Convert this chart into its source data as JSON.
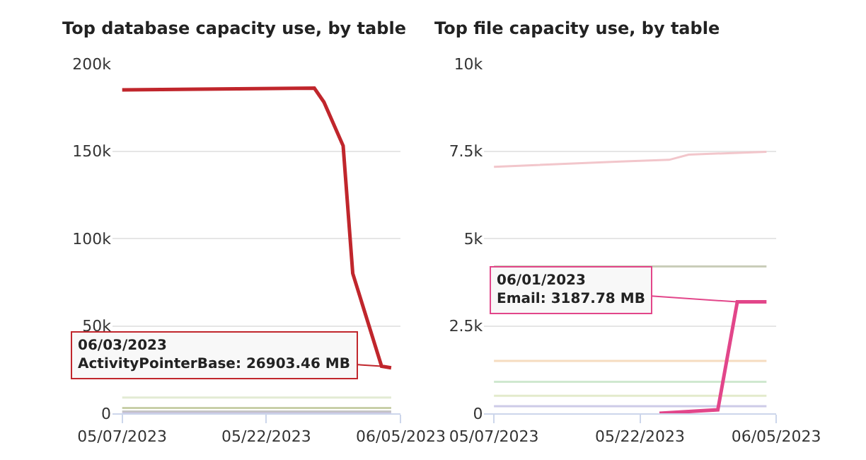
{
  "chart_data": [
    {
      "type": "line",
      "title": "Top database capacity use, by table",
      "grid": "y",
      "xlim": [
        "2023-05-06",
        "2023-06-05"
      ],
      "xticks": [
        {
          "value": "2023-05-07",
          "label": "05/07/2023"
        },
        {
          "value": "2023-05-22",
          "label": "05/22/2023"
        },
        {
          "value": "2023-06-05",
          "label": "06/05/2023"
        }
      ],
      "ylim": [
        0,
        200000
      ],
      "yticks": [
        {
          "value": 0,
          "label": "0"
        },
        {
          "value": 50000,
          "label": "50k"
        },
        {
          "value": 100000,
          "label": "100k"
        },
        {
          "value": 150000,
          "label": "150k"
        },
        {
          "value": 200000,
          "label": "200k"
        }
      ],
      "series": [
        {
          "color": "#e3ebd3",
          "x": [
            "2023-05-07",
            "2023-06-04"
          ],
          "values": [
            9000,
            9000
          ]
        },
        {
          "color": "#c8cfa8",
          "x": [
            "2023-05-07",
            "2023-06-04"
          ],
          "values": [
            3000,
            3000
          ]
        },
        {
          "color": "#c4c4c4",
          "x": [
            "2023-05-07",
            "2023-06-04"
          ],
          "values": [
            1000,
            1000
          ]
        },
        {
          "color": "#c9c3e0",
          "x": [
            "2023-05-07",
            "2023-06-04"
          ],
          "values": [
            0,
            0
          ]
        },
        {
          "color": "#c0262c",
          "x": [
            "2023-05-07",
            "2023-05-27",
            "2023-05-28",
            "2023-05-30",
            "2023-05-31",
            "2023-06-03",
            "2023-06-04"
          ],
          "values": [
            185000,
            186000,
            178000,
            153000,
            80000,
            26903.46,
            26000
          ]
        }
      ],
      "annotations": [
        {
          "text": "06/03/2023\nActivityPointerBase: 26903.46 MB",
          "x": "2023-06-03",
          "y": 26903.46
        }
      ]
    },
    {
      "type": "line",
      "title": "Top file capacity use, by table",
      "grid": "y",
      "xlim": [
        "2023-05-06",
        "2023-06-05"
      ],
      "xticks": [
        {
          "value": "2023-05-07",
          "label": "05/07/2023"
        },
        {
          "value": "2023-05-22",
          "label": "05/22/2023"
        },
        {
          "value": "2023-06-05",
          "label": "06/05/2023"
        }
      ],
      "ylim": [
        0,
        10000
      ],
      "yticks": [
        {
          "value": 0,
          "label": "0"
        },
        {
          "value": 2500,
          "label": "2.5k"
        },
        {
          "value": 5000,
          "label": "5k"
        },
        {
          "value": 7500,
          "label": "7.5k"
        },
        {
          "value": 10000,
          "label": "10k"
        }
      ],
      "series": [
        {
          "color": "#f2c6cb",
          "x": [
            "2023-05-07",
            "2023-05-20",
            "2023-05-25",
            "2023-05-27",
            "2023-06-04"
          ],
          "values": [
            7050,
            7200,
            7250,
            7400,
            7480
          ]
        },
        {
          "color": "#c9cdb9",
          "x": [
            "2023-05-07",
            "2023-06-04"
          ],
          "values": [
            4200,
            4200
          ]
        },
        {
          "color": "#f6dcc0",
          "x": [
            "2023-05-07",
            "2023-06-04"
          ],
          "values": [
            1500,
            1500
          ]
        },
        {
          "color": "#cfe8cf",
          "x": [
            "2023-05-07",
            "2023-06-04"
          ],
          "values": [
            900,
            900
          ]
        },
        {
          "color": "#e3ebcc",
          "x": [
            "2023-05-07",
            "2023-06-04"
          ],
          "values": [
            500,
            500
          ]
        },
        {
          "color": "#cdcbe8",
          "x": [
            "2023-05-07",
            "2023-06-04"
          ],
          "values": [
            200,
            200
          ]
        },
        {
          "color": "#e2468a",
          "x": [
            "2023-05-24",
            "2023-05-30",
            "2023-06-01",
            "2023-06-04"
          ],
          "values": [
            0,
            100,
            3187.78,
            3187.78
          ]
        }
      ],
      "annotations": [
        {
          "text": "06/01/2023\nEmail: 3187.78 MB",
          "x": "2023-06-01",
          "y": 3187.78
        }
      ]
    }
  ]
}
